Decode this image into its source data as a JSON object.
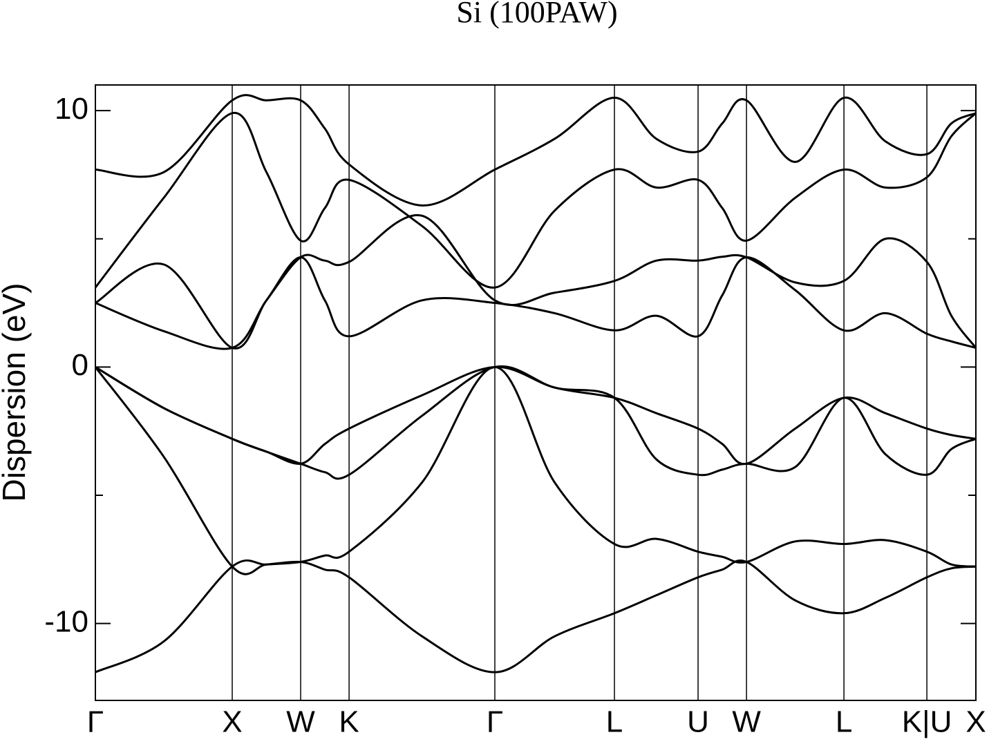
{
  "chart_data": {
    "type": "line",
    "title": "Si (100PAW)",
    "y_label": "Dispersion (eV)",
    "xlim": [
      0,
      6.434
    ],
    "ylim": [
      -13,
      11
    ],
    "xticks": [
      {
        "value": 0,
        "label": "Γ"
      },
      {
        "value": 1,
        "label": "X"
      },
      {
        "value": 1.5,
        "label": "W"
      },
      {
        "value": 1.854,
        "label": "K"
      },
      {
        "value": 2.919,
        "label": "Γ"
      },
      {
        "value": 3.793,
        "label": "L"
      },
      {
        "value": 4.404,
        "label": "U"
      },
      {
        "value": 4.758,
        "label": "W"
      },
      {
        "value": 5.47,
        "label": "L"
      },
      {
        "value": 6.076,
        "label": "K|U"
      },
      {
        "value": 6.434,
        "label": "X"
      }
    ],
    "yticks": [
      -10,
      0,
      10
    ],
    "yminor_ticks": [
      -5,
      5
    ],
    "grid": "x",
    "x": [
      0,
      0.5,
      1,
      1.25,
      1.5,
      1.677,
      1.854,
      2.387,
      2.919,
      3.356,
      3.793,
      4.099,
      4.404,
      4.581,
      4.758,
      5.114,
      5.47,
      5.773,
      6.076,
      6.255,
      6.434
    ],
    "series": [
      {
        "color": "#000000",
        "values": [
          -11.9,
          -10.7,
          -7.78,
          -7.7,
          -7.6,
          -7.9,
          -8.2,
          -10.5,
          -11.9,
          -10.5,
          -9.6,
          -8.9,
          -8.2,
          -7.9,
          -7.6,
          -9.1,
          -9.6,
          -9.0,
          -8.2,
          -7.85,
          -7.78
        ]
      },
      {
        "color": "#000000",
        "values": [
          0,
          -3.5,
          -7.78,
          -7.7,
          -7.6,
          -7.35,
          -7.2,
          -4.5,
          0,
          -4.5,
          -6.9,
          -6.7,
          -7.2,
          -7.4,
          -7.6,
          -6.8,
          -6.9,
          -6.75,
          -7.2,
          -7.7,
          -7.78
        ]
      },
      {
        "color": "#000000",
        "values": [
          0,
          -1.6,
          -2.8,
          -3.3,
          -3.77,
          -4.1,
          -4.2,
          -1.9,
          0,
          -0.8,
          -1.2,
          -3.6,
          -4.2,
          -4.0,
          -3.77,
          -3.9,
          -1.2,
          -3.4,
          -4.2,
          -3.2,
          -2.8
        ]
      },
      {
        "color": "#000000",
        "values": [
          0,
          -1.6,
          -2.8,
          -3.3,
          -3.77,
          -3.0,
          -2.4,
          -1.1,
          0,
          -0.8,
          -1.2,
          -1.8,
          -2.4,
          -3.0,
          -3.77,
          -2.4,
          -1.2,
          -1.8,
          -2.4,
          -2.65,
          -2.8
        ]
      },
      {
        "color": "#000000",
        "values": [
          2.5,
          1.4,
          0.75,
          2.6,
          4.28,
          2.6,
          1.2,
          2.6,
          2.5,
          2.1,
          1.43,
          2.0,
          1.2,
          2.8,
          4.28,
          3.0,
          1.43,
          2.1,
          1.3,
          1.0,
          0.75
        ]
      },
      {
        "color": "#000000",
        "values": [
          2.5,
          4.0,
          0.75,
          2.6,
          4.28,
          4.15,
          4.1,
          5.9,
          2.6,
          2.9,
          3.36,
          4.15,
          4.15,
          4.3,
          4.28,
          3.3,
          3.36,
          5.0,
          4.1,
          2.0,
          0.75
        ]
      },
      {
        "color": "#000000",
        "values": [
          3.1,
          6.6,
          9.9,
          7.6,
          4.93,
          6.2,
          7.3,
          5.5,
          3.1,
          6.1,
          7.7,
          7.0,
          7.3,
          6.2,
          4.93,
          6.6,
          7.7,
          7.0,
          7.4,
          9.0,
          9.9
        ]
      },
      {
        "color": "#000000",
        "values": [
          7.7,
          7.6,
          10.4,
          10.4,
          10.4,
          9.3,
          7.9,
          6.3,
          7.7,
          8.9,
          10.5,
          8.9,
          8.4,
          9.5,
          10.4,
          8.0,
          10.5,
          8.8,
          8.3,
          9.5,
          9.9
        ]
      }
    ]
  }
}
